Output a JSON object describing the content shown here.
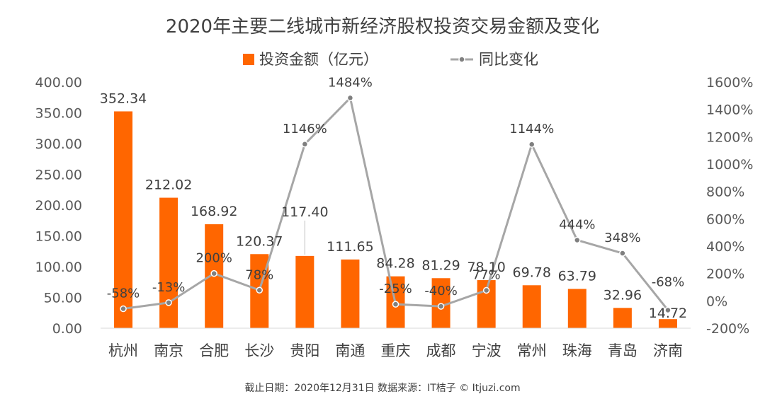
{
  "chart_data": {
    "type": "bar",
    "title": "2020年主要二线城市新经济股权投资交易金额及变化",
    "categories": [
      "杭州",
      "南京",
      "合肥",
      "长沙",
      "贵阳",
      "南通",
      "重庆",
      "成都",
      "宁波",
      "常州",
      "珠海",
      "青岛",
      "济南"
    ],
    "series": [
      {
        "name": "投资金额（亿元）",
        "kind": "bar",
        "axis": "left",
        "color": "#FF6600",
        "values": [
          352.34,
          212.02,
          168.92,
          120.37,
          117.4,
          111.65,
          84.28,
          81.29,
          78.1,
          69.78,
          63.79,
          32.96,
          14.72
        ],
        "labels": [
          "352.34",
          "212.02",
          "168.92",
          "120.37",
          "117.40",
          "111.65",
          "84.28",
          "81.29",
          "78.10",
          "69.78",
          "63.79",
          "32.96",
          "14.72"
        ]
      },
      {
        "name": "同比变化",
        "kind": "line",
        "axis": "right",
        "color": "#A6A6A6",
        "values": [
          -58,
          -13,
          200,
          78,
          1146,
          1484,
          -25,
          -40,
          77,
          1144,
          444,
          348,
          -68
        ],
        "labels": [
          "-58%",
          "-13%",
          "200%",
          "78%",
          "1146%",
          "1484%",
          "-25%",
          "-40%",
          "77%",
          "1144%",
          "444%",
          "348%",
          "-68%"
        ]
      }
    ],
    "y_left": {
      "range": [
        0,
        400
      ],
      "ticks": [
        0,
        50,
        100,
        150,
        200,
        250,
        300,
        350,
        400
      ],
      "tick_labels": [
        "0.00",
        "50.00",
        "100.00",
        "150.00",
        "200.00",
        "250.00",
        "300.00",
        "350.00",
        "400.00"
      ]
    },
    "y_right": {
      "range": [
        -200,
        1600
      ],
      "ticks": [
        -200,
        0,
        200,
        400,
        600,
        800,
        1000,
        1200,
        1400,
        1600
      ],
      "tick_labels": [
        "-200%",
        "0%",
        "200%",
        "400%",
        "600%",
        "800%",
        "1000%",
        "1200%",
        "1400%",
        "1600%"
      ]
    },
    "grid": false,
    "legend_position": "top-center"
  },
  "source_note": "截止日期：2020年12月31日    数据来源：IT桔子 © Itjuzi.com"
}
